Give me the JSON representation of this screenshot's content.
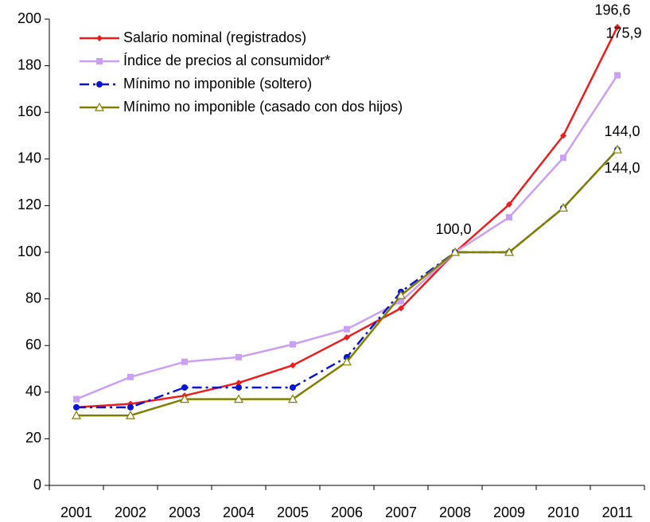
{
  "chart_data": {
    "type": "line",
    "categories": [
      "2001",
      "2002",
      "2003",
      "2004",
      "2005",
      "2006",
      "2007",
      "2008",
      "2009",
      "2010",
      "2011"
    ],
    "ylim": [
      0,
      200
    ],
    "yticks": [
      0,
      20,
      40,
      60,
      80,
      100,
      120,
      140,
      160,
      180,
      200
    ],
    "grid": false,
    "legend": "upper left",
    "series": [
      {
        "name": "Salario nominal (registrados)",
        "color": "#ee1c1c",
        "marker": "diamond",
        "linestyle": "solid",
        "values": [
          33.5,
          35,
          38.5,
          44,
          51.5,
          63.5,
          76,
          100,
          120.5,
          150,
          196.6
        ],
        "value_labels": [
          null,
          null,
          null,
          null,
          null,
          null,
          null,
          "100,0",
          null,
          null,
          "196,6"
        ]
      },
      {
        "name": "Índice de precios al consumidor*",
        "color": "#c9a0f2",
        "marker": "square",
        "linestyle": "solid",
        "values": [
          37,
          46.5,
          53,
          55,
          60.5,
          67,
          79,
          100,
          115,
          140.5,
          175.9
        ],
        "value_labels": [
          null,
          null,
          null,
          null,
          null,
          null,
          null,
          null,
          null,
          null,
          "175,9"
        ]
      },
      {
        "name": "Mínimo no imponible (soltero)",
        "color": "#0a14d2",
        "marker": "circle",
        "linestyle": "dashdot",
        "values": [
          33.5,
          33.5,
          42,
          42,
          42,
          55,
          83,
          100,
          100,
          119,
          144
        ],
        "value_labels": [
          null,
          null,
          null,
          null,
          null,
          null,
          null,
          null,
          null,
          null,
          "144,0"
        ]
      },
      {
        "name": "Mínimo no imponible (casado con dos hijos)",
        "color": "#808000",
        "marker": "triangle",
        "linestyle": "solid",
        "values": [
          30,
          30,
          37,
          37,
          37,
          53,
          81.5,
          100,
          100,
          119,
          144
        ],
        "value_labels": [
          null,
          null,
          null,
          null,
          null,
          null,
          null,
          null,
          null,
          null,
          "144,0"
        ]
      }
    ]
  }
}
